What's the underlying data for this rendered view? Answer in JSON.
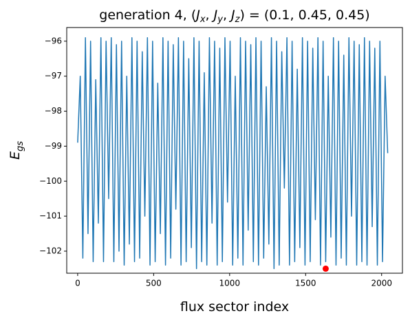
{
  "chart_data": {
    "type": "line",
    "title_parts": [
      "generation 4, (",
      "J",
      "x",
      ", ",
      "J",
      "y",
      ", ",
      "J",
      "z",
      ") = (0.1, 0.45, 0.45)"
    ],
    "xlabel": "flux sector index",
    "ylabel_parts": [
      "E",
      "gs"
    ],
    "xlim": [
      -72,
      2137
    ],
    "ylim": [
      -102.63,
      -95.61
    ],
    "xticks": [
      0,
      500,
      1000,
      1500,
      2000
    ],
    "yticks": [
      {
        "value": -96,
        "label": "−96"
      },
      {
        "value": -97,
        "label": "−97"
      },
      {
        "value": -98,
        "label": "−98"
      },
      {
        "value": -99,
        "label": "−99"
      },
      {
        "value": -100,
        "label": "−100"
      },
      {
        "value": -101,
        "label": "−101"
      },
      {
        "value": -102,
        "label": "−102"
      }
    ],
    "x": [
      0,
      17,
      34,
      51,
      68,
      85,
      102,
      119,
      136,
      153,
      170,
      187,
      204,
      221,
      238,
      255,
      272,
      289,
      306,
      323,
      340,
      357,
      374,
      391,
      408,
      425,
      442,
      459,
      476,
      493,
      510,
      527,
      544,
      561,
      578,
      595,
      612,
      629,
      646,
      663,
      680,
      697,
      714,
      731,
      748,
      765,
      782,
      799,
      816,
      833,
      850,
      867,
      884,
      901,
      918,
      935,
      952,
      969,
      986,
      1003,
      1020,
      1037,
      1054,
      1071,
      1088,
      1105,
      1122,
      1139,
      1156,
      1173,
      1190,
      1207,
      1224,
      1241,
      1258,
      1275,
      1292,
      1309,
      1326,
      1343,
      1360,
      1377,
      1394,
      1411,
      1428,
      1445,
      1462,
      1479,
      1496,
      1513,
      1530,
      1547,
      1564,
      1581,
      1598,
      1615,
      1632,
      1649,
      1666,
      1683,
      1700,
      1717,
      1734,
      1751,
      1768,
      1785,
      1802,
      1819,
      1836,
      1853,
      1870,
      1887,
      1904,
      1921,
      1938,
      1955,
      1972,
      1989,
      2006,
      2023,
      2040
    ],
    "series": [
      {
        "color": "#1f77b4",
        "values": [
          -98.9,
          -97.0,
          -102.2,
          -95.9,
          -101.5,
          -96.0,
          -102.3,
          -97.1,
          -101.2,
          -95.9,
          -102.3,
          -96.0,
          -100.5,
          -95.9,
          -102.3,
          -96.1,
          -102.0,
          -96.0,
          -102.4,
          -97.0,
          -101.8,
          -95.9,
          -102.3,
          -96.0,
          -102.2,
          -96.3,
          -101.0,
          -95.9,
          -102.4,
          -96.0,
          -102.3,
          -97.2,
          -101.5,
          -95.9,
          -102.4,
          -96.0,
          -102.2,
          -96.1,
          -100.8,
          -95.9,
          -102.4,
          -96.0,
          -102.3,
          -96.5,
          -101.9,
          -95.9,
          -102.5,
          -96.0,
          -102.3,
          -96.9,
          -102.4,
          -95.9,
          -101.2,
          -96.0,
          -102.4,
          -96.2,
          -102.3,
          -95.9,
          -100.6,
          -96.0,
          -102.4,
          -97.0,
          -102.2,
          -95.9,
          -102.4,
          -96.0,
          -101.4,
          -96.1,
          -102.3,
          -95.9,
          -102.4,
          -96.0,
          -102.2,
          -97.3,
          -101.8,
          -95.9,
          -102.5,
          -96.0,
          -102.4,
          -96.3,
          -100.2,
          -95.9,
          -102.4,
          -96.0,
          -102.3,
          -96.8,
          -101.9,
          -95.9,
          -102.4,
          -96.0,
          -102.3,
          -96.2,
          -101.1,
          -95.9,
          -102.4,
          -96.0,
          -102.3,
          -97.0,
          -101.6,
          -95.9,
          -102.4,
          -96.0,
          -102.2,
          -96.4,
          -102.4,
          -95.9,
          -101.0,
          -96.0,
          -102.4,
          -96.1,
          -102.3,
          -95.9,
          -102.4,
          -96.0,
          -101.3,
          -96.2,
          -102.4,
          -96.0,
          -102.3,
          -97.0,
          -99.2
        ]
      }
    ],
    "points": {
      "x": [
        1632
      ],
      "values": [
        -102.5
      ],
      "color": "red"
    }
  }
}
